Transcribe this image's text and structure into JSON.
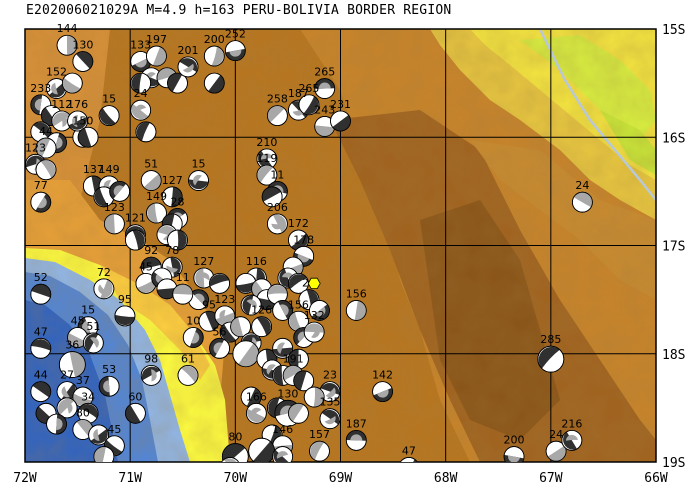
{
  "title": "E202006021029A  M=4.9 h=163 PERU-BOLIVIA BORDER REGION",
  "map": {
    "lon_range": [
      -72,
      -66
    ],
    "lat_range": [
      -19,
      -15
    ],
    "lon_ticks": [
      {
        "value": -72,
        "label": "72W"
      },
      {
        "value": -71,
        "label": "71W"
      },
      {
        "value": -70,
        "label": "70W"
      },
      {
        "value": -69,
        "label": "69W"
      },
      {
        "value": -68,
        "label": "68W"
      },
      {
        "value": -67,
        "label": "67W"
      },
      {
        "value": -66,
        "label": "66W"
      }
    ],
    "lat_ticks": [
      {
        "value": -15,
        "label": "15S"
      },
      {
        "value": -16,
        "label": "16S"
      },
      {
        "value": -17,
        "label": "17S"
      },
      {
        "value": -18,
        "label": "18S"
      },
      {
        "value": -19,
        "label": "19S"
      }
    ],
    "grid": true,
    "colors": {
      "ocean_deep": "#2a62c8",
      "ocean_mid": "#4f86dc",
      "ocean_shallow": "#8fb8ee",
      "coast_low": "#ffff40",
      "lowland": "#f0a030",
      "highland": "#c07a28",
      "mountain": "#a0621e",
      "peak": "#8a5418",
      "plain_green": "#d8f040",
      "plain_yellow": "#f4e640",
      "river": "#b8c8d8",
      "beachball_dark": "#303030",
      "beachball_gray": "#a8a8a8",
      "epicenter": "#ffff00"
    },
    "epicenter": {
      "lon": -69.25,
      "lat": -17.35
    },
    "mechanisms": [
      {
        "lon": -71.6,
        "lat": -15.15,
        "label": "144",
        "big": false
      },
      {
        "lon": -71.45,
        "lat": -15.3,
        "label": "130",
        "big": false
      },
      {
        "lon": -71.7,
        "lat": -15.55,
        "label": "152",
        "big": false
      },
      {
        "lon": -71.55,
        "lat": -15.5,
        "label": "",
        "big": false
      },
      {
        "lon": -71.85,
        "lat": -15.7,
        "label": "233",
        "big": false
      },
      {
        "lon": -71.75,
        "lat": -15.8,
        "label": "",
        "big": false
      },
      {
        "lon": -71.65,
        "lat": -15.85,
        "label": "112",
        "big": false
      },
      {
        "lon": -71.85,
        "lat": -15.95,
        "label": "",
        "big": false
      },
      {
        "lon": -71.7,
        "lat": -16.05,
        "label": "",
        "big": false
      },
      {
        "lon": -71.45,
        "lat": -16.0,
        "label": "150",
        "big": false
      },
      {
        "lon": -71.5,
        "lat": -15.85,
        "label": "176",
        "big": false
      },
      {
        "lon": -71.2,
        "lat": -15.8,
        "label": "15",
        "big": false
      },
      {
        "lon": -71.8,
        "lat": -16.1,
        "label": "44",
        "big": false
      },
      {
        "lon": -71.4,
        "lat": -16.0,
        "label": "",
        "big": false
      },
      {
        "lon": -71.9,
        "lat": -16.25,
        "label": "123",
        "big": false
      },
      {
        "lon": -71.8,
        "lat": -16.3,
        "label": "",
        "big": false
      },
      {
        "lon": -71.85,
        "lat": -16.6,
        "label": "77",
        "big": false
      },
      {
        "lon": -71.35,
        "lat": -16.45,
        "label": "137",
        "big": false
      },
      {
        "lon": -71.2,
        "lat": -16.45,
        "label": "149",
        "big": false
      },
      {
        "lon": -71.25,
        "lat": -16.55,
        "label": "",
        "big": false
      },
      {
        "lon": -71.1,
        "lat": -16.5,
        "label": "",
        "big": false
      },
      {
        "lon": -71.15,
        "lat": -16.8,
        "label": "123",
        "big": false
      },
      {
        "lon": -70.95,
        "lat": -16.9,
        "label": "121",
        "big": false
      },
      {
        "lon": -70.95,
        "lat": -16.95,
        "label": "",
        "big": false
      },
      {
        "lon": -70.8,
        "lat": -16.4,
        "label": "51",
        "big": false
      },
      {
        "lon": -70.6,
        "lat": -16.55,
        "label": "127",
        "big": false
      },
      {
        "lon": -70.35,
        "lat": -16.4,
        "label": "15",
        "big": false
      },
      {
        "lon": -70.75,
        "lat": -16.7,
        "label": "149",
        "big": false
      },
      {
        "lon": -70.55,
        "lat": -16.75,
        "label": "28",
        "big": false
      },
      {
        "lon": -70.6,
        "lat": -16.8,
        "label": "",
        "big": false
      },
      {
        "lon": -70.65,
        "lat": -16.9,
        "label": "",
        "big": false
      },
      {
        "lon": -70.55,
        "lat": -16.95,
        "label": "",
        "big": false
      },
      {
        "lon": -70.9,
        "lat": -15.3,
        "label": "133",
        "big": false
      },
      {
        "lon": -70.75,
        "lat": -15.25,
        "label": "197",
        "big": false
      },
      {
        "lon": -70.8,
        "lat": -15.45,
        "label": "",
        "big": false
      },
      {
        "lon": -70.9,
        "lat": -15.5,
        "label": "",
        "big": false
      },
      {
        "lon": -70.65,
        "lat": -15.45,
        "label": "",
        "big": false
      },
      {
        "lon": -70.55,
        "lat": -15.5,
        "label": "",
        "big": false
      },
      {
        "lon": -70.45,
        "lat": -15.35,
        "label": "201",
        "big": false
      },
      {
        "lon": -70.2,
        "lat": -15.25,
        "label": "200",
        "big": false
      },
      {
        "lon": -70.0,
        "lat": -15.2,
        "label": "252",
        "big": false
      },
      {
        "lon": -70.2,
        "lat": -15.5,
        "label": "",
        "big": false
      },
      {
        "lon": -70.9,
        "lat": -15.75,
        "label": "24",
        "big": false
      },
      {
        "lon": -70.85,
        "lat": -15.95,
        "label": "",
        "big": false
      },
      {
        "lon": -69.15,
        "lat": -15.55,
        "label": "265",
        "big": false
      },
      {
        "lon": -69.6,
        "lat": -15.8,
        "label": "258",
        "big": false
      },
      {
        "lon": -69.4,
        "lat": -15.75,
        "label": "187",
        "big": false
      },
      {
        "lon": -69.3,
        "lat": -15.7,
        "label": "265",
        "big": false
      },
      {
        "lon": -69.15,
        "lat": -15.9,
        "label": "243",
        "big": false
      },
      {
        "lon": -69.0,
        "lat": -15.85,
        "label": "231",
        "big": false
      },
      {
        "lon": -69.7,
        "lat": -16.2,
        "label": "210",
        "big": false
      },
      {
        "lon": -69.7,
        "lat": -16.35,
        "label": "119",
        "big": false
      },
      {
        "lon": -69.6,
        "lat": -16.5,
        "label": "11",
        "big": false
      },
      {
        "lon": -69.65,
        "lat": -16.55,
        "label": "",
        "big": false
      },
      {
        "lon": -69.6,
        "lat": -16.8,
        "label": "206",
        "big": false
      },
      {
        "lon": -69.4,
        "lat": -16.95,
        "label": "172",
        "big": false
      },
      {
        "lon": -69.35,
        "lat": -17.1,
        "label": "178",
        "big": false
      },
      {
        "lon": -69.45,
        "lat": -17.2,
        "label": "",
        "big": false
      },
      {
        "lon": -69.5,
        "lat": -17.3,
        "label": "",
        "big": false
      },
      {
        "lon": -69.4,
        "lat": -17.35,
        "label": "",
        "big": false
      },
      {
        "lon": -66.7,
        "lat": -16.6,
        "label": "24",
        "big": false
      },
      {
        "lon": -70.8,
        "lat": -17.2,
        "label": "92",
        "big": false
      },
      {
        "lon": -70.6,
        "lat": -17.2,
        "label": "78",
        "big": false
      },
      {
        "lon": -70.85,
        "lat": -17.35,
        "label": "45",
        "big": false
      },
      {
        "lon": -70.7,
        "lat": -17.3,
        "label": "",
        "big": false
      },
      {
        "lon": -70.65,
        "lat": -17.4,
        "label": "",
        "big": false
      },
      {
        "lon": -70.3,
        "lat": -17.3,
        "label": "127",
        "big": false
      },
      {
        "lon": -70.15,
        "lat": -17.35,
        "label": "",
        "big": false
      },
      {
        "lon": -70.35,
        "lat": -17.5,
        "label": "",
        "big": false
      },
      {
        "lon": -70.5,
        "lat": -17.45,
        "label": "11",
        "big": false
      },
      {
        "lon": -69.8,
        "lat": -17.3,
        "label": "116",
        "big": false
      },
      {
        "lon": -69.9,
        "lat": -17.35,
        "label": "",
        "big": false
      },
      {
        "lon": -69.75,
        "lat": -17.4,
        "label": "",
        "big": false
      },
      {
        "lon": -69.7,
        "lat": -17.5,
        "label": "",
        "big": false
      },
      {
        "lon": -69.85,
        "lat": -17.55,
        "label": "",
        "big": false
      },
      {
        "lon": -69.6,
        "lat": -17.45,
        "label": "",
        "big": false
      },
      {
        "lon": -69.55,
        "lat": -17.6,
        "label": "",
        "big": false
      },
      {
        "lon": -71.85,
        "lat": -17.45,
        "label": "52",
        "big": false
      },
      {
        "lon": -71.25,
        "lat": -17.4,
        "label": "72",
        "big": false
      },
      {
        "lon": -71.05,
        "lat": -17.65,
        "label": "95",
        "big": false
      },
      {
        "lon": -71.4,
        "lat": -17.75,
        "label": "15",
        "big": false
      },
      {
        "lon": -71.5,
        "lat": -17.85,
        "label": "45",
        "big": false
      },
      {
        "lon": -71.35,
        "lat": -17.9,
        "label": "51",
        "big": false
      },
      {
        "lon": -71.85,
        "lat": -17.95,
        "label": "47",
        "big": false
      },
      {
        "lon": -71.55,
        "lat": -18.1,
        "label": "36",
        "big": true
      },
      {
        "lon": -71.85,
        "lat": -18.35,
        "label": "44",
        "big": false
      },
      {
        "lon": -71.6,
        "lat": -18.35,
        "label": "27",
        "big": false
      },
      {
        "lon": -71.45,
        "lat": -18.4,
        "label": "37",
        "big": false
      },
      {
        "lon": -71.2,
        "lat": -18.3,
        "label": "53",
        "big": false
      },
      {
        "lon": -71.8,
        "lat": -18.55,
        "label": "",
        "big": false
      },
      {
        "lon": -71.6,
        "lat": -18.5,
        "label": "",
        "big": false
      },
      {
        "lon": -71.4,
        "lat": -18.55,
        "label": "34",
        "big": false
      },
      {
        "lon": -71.7,
        "lat": -18.65,
        "label": "",
        "big": false
      },
      {
        "lon": -71.45,
        "lat": -18.7,
        "label": "80",
        "big": false
      },
      {
        "lon": -71.3,
        "lat": -18.75,
        "label": "",
        "big": false
      },
      {
        "lon": -71.15,
        "lat": -18.85,
        "label": "45",
        "big": false
      },
      {
        "lon": -71.25,
        "lat": -18.95,
        "label": "",
        "big": false
      },
      {
        "lon": -70.95,
        "lat": -18.55,
        "label": "60",
        "big": false
      },
      {
        "lon": -70.8,
        "lat": -18.2,
        "label": "98",
        "big": false
      },
      {
        "lon": -70.45,
        "lat": -18.2,
        "label": "61",
        "big": false
      },
      {
        "lon": -70.4,
        "lat": -17.85,
        "label": "10",
        "big": false
      },
      {
        "lon": -70.25,
        "lat": -17.7,
        "label": "95",
        "big": false
      },
      {
        "lon": -70.1,
        "lat": -17.65,
        "label": "123",
        "big": false
      },
      {
        "lon": -70.05,
        "lat": -17.8,
        "label": "",
        "big": false
      },
      {
        "lon": -70.15,
        "lat": -17.95,
        "label": "56",
        "big": false
      },
      {
        "lon": -69.95,
        "lat": -17.75,
        "label": "",
        "big": false
      },
      {
        "lon": -69.85,
        "lat": -17.9,
        "label": "",
        "big": false
      },
      {
        "lon": -69.75,
        "lat": -17.75,
        "label": "126",
        "big": false
      },
      {
        "lon": -69.9,
        "lat": -18.0,
        "label": "",
        "big": true
      },
      {
        "lon": -69.7,
        "lat": -18.05,
        "label": "",
        "big": false
      },
      {
        "lon": -69.55,
        "lat": -17.95,
        "label": "",
        "big": false
      },
      {
        "lon": -69.4,
        "lat": -17.7,
        "label": "156",
        "big": false
      },
      {
        "lon": -69.35,
        "lat": -17.85,
        "label": "",
        "big": false
      },
      {
        "lon": -69.4,
        "lat": -18.05,
        "label": "",
        "big": false
      },
      {
        "lon": -69.25,
        "lat": -17.8,
        "label": "132",
        "big": false
      },
      {
        "lon": -69.3,
        "lat": -17.5,
        "label": "20",
        "big": false
      },
      {
        "lon": -69.2,
        "lat": -17.6,
        "label": "",
        "big": false
      },
      {
        "lon": -68.85,
        "lat": -17.6,
        "label": "156",
        "big": false
      },
      {
        "lon": -69.65,
        "lat": -18.15,
        "label": "",
        "big": false
      },
      {
        "lon": -69.55,
        "lat": -18.2,
        "label": "",
        "big": false
      },
      {
        "lon": -69.45,
        "lat": -18.2,
        "label": "191",
        "big": false
      },
      {
        "lon": -69.35,
        "lat": -18.25,
        "label": "",
        "big": false
      },
      {
        "lon": -69.1,
        "lat": -18.35,
        "label": "23",
        "big": false
      },
      {
        "lon": -69.25,
        "lat": -18.4,
        "label": "",
        "big": false
      },
      {
        "lon": -68.6,
        "lat": -18.35,
        "label": "142",
        "big": false
      },
      {
        "lon": -69.85,
        "lat": -18.4,
        "label": "",
        "big": false
      },
      {
        "lon": -69.8,
        "lat": -18.55,
        "label": "166",
        "big": false
      },
      {
        "lon": -69.6,
        "lat": -18.5,
        "label": "",
        "big": false
      },
      {
        "lon": -69.5,
        "lat": -18.55,
        "label": "130",
        "big": true
      },
      {
        "lon": -69.4,
        "lat": -18.55,
        "label": "",
        "big": false
      },
      {
        "lon": -69.1,
        "lat": -18.6,
        "label": "135",
        "big": false
      },
      {
        "lon": -69.65,
        "lat": -18.75,
        "label": "",
        "big": false
      },
      {
        "lon": -69.55,
        "lat": -18.85,
        "label": "146",
        "big": false
      },
      {
        "lon": -69.75,
        "lat": -18.9,
        "label": "",
        "big": true
      },
      {
        "lon": -69.55,
        "lat": -18.95,
        "label": "",
        "big": false
      },
      {
        "lon": -69.2,
        "lat": -18.9,
        "label": "157",
        "big": false
      },
      {
        "lon": -68.85,
        "lat": -18.8,
        "label": "187",
        "big": false
      },
      {
        "lon": -70.0,
        "lat": -18.95,
        "label": "80",
        "big": true
      },
      {
        "lon": -70.05,
        "lat": -19.05,
        "label": "",
        "big": false
      },
      {
        "lon": -68.35,
        "lat": -19.05,
        "label": "47",
        "big": false
      },
      {
        "lon": -67.35,
        "lat": -18.95,
        "label": "200",
        "big": false
      },
      {
        "lon": -66.95,
        "lat": -18.9,
        "label": "24",
        "big": false
      },
      {
        "lon": -66.8,
        "lat": -18.8,
        "label": "216",
        "big": false
      },
      {
        "lon": -67.0,
        "lat": -18.05,
        "label": "285",
        "big": true
      }
    ]
  }
}
